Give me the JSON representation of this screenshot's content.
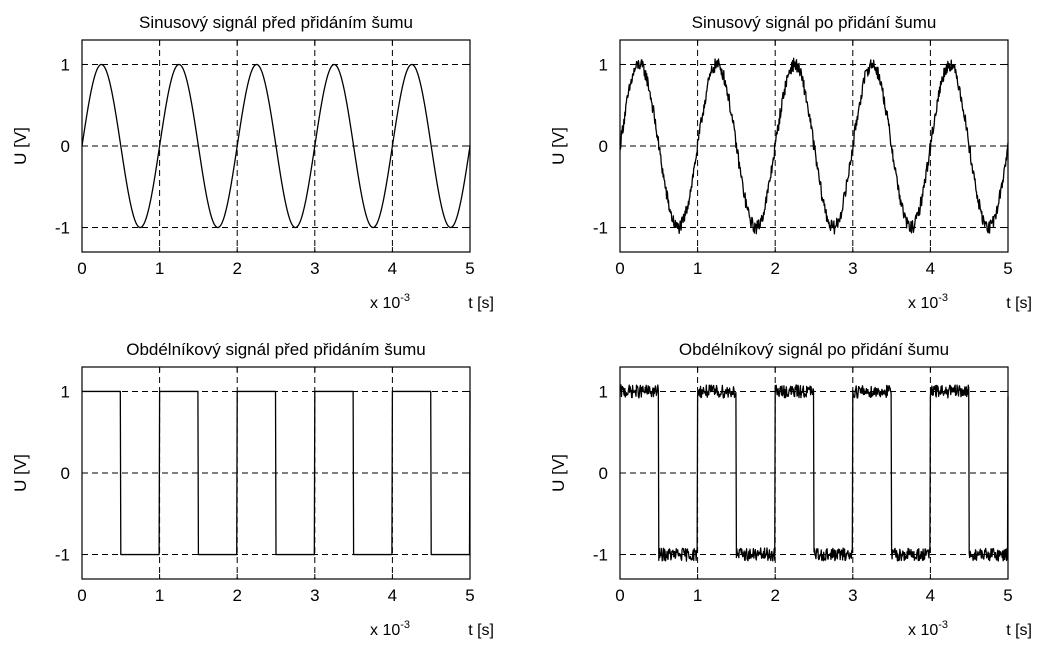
{
  "chart_data": [
    {
      "type": "line",
      "title": "Sinusový signál před přidáním šumu",
      "xlabel": "t [s]",
      "xscale_text": "x 10",
      "xscale_exp": "-3",
      "ylabel": "U [V]",
      "xlim": [
        0,
        5
      ],
      "ylim": [
        -1.3,
        1.3
      ],
      "xticks": [
        "0",
        "1",
        "2",
        "3",
        "4",
        "5"
      ],
      "yticks": [
        "-1",
        "0",
        "1"
      ],
      "grid": true,
      "series": [
        {
          "shape": "sine",
          "frequency_khz": 1,
          "amplitude": 1,
          "noise": 0
        }
      ]
    },
    {
      "type": "line",
      "title": "Sinusový signál po přidání šumu",
      "xlabel": "t [s]",
      "xscale_text": "x 10",
      "xscale_exp": "-3",
      "ylabel": "U [V]",
      "xlim": [
        0,
        5
      ],
      "ylim": [
        -1.3,
        1.3
      ],
      "xticks": [
        "0",
        "1",
        "2",
        "3",
        "4",
        "5"
      ],
      "yticks": [
        "-1",
        "0",
        "1"
      ],
      "grid": true,
      "series": [
        {
          "shape": "sine",
          "frequency_khz": 1,
          "amplitude": 1,
          "noise": 0.05
        }
      ]
    },
    {
      "type": "line",
      "title": "Obdélníkový signál před přidáním šumu",
      "xlabel": "t [s]",
      "xscale_text": "x 10",
      "xscale_exp": "-3",
      "ylabel": "U [V]",
      "xlim": [
        0,
        5
      ],
      "ylim": [
        -1.3,
        1.3
      ],
      "xticks": [
        "0",
        "1",
        "2",
        "3",
        "4",
        "5"
      ],
      "yticks": [
        "-1",
        "0",
        "1"
      ],
      "grid": true,
      "series": [
        {
          "shape": "square",
          "frequency_khz": 1,
          "amplitude": 1,
          "noise": 0
        }
      ]
    },
    {
      "type": "line",
      "title": "Obdélníkový signál po přidání šumu",
      "xlabel": "t [s]",
      "xscale_text": "x 10",
      "xscale_exp": "-3",
      "ylabel": "U [V]",
      "xlim": [
        0,
        5
      ],
      "ylim": [
        -1.3,
        1.3
      ],
      "xticks": [
        "0",
        "1",
        "2",
        "3",
        "4",
        "5"
      ],
      "yticks": [
        "-1",
        "0",
        "1"
      ],
      "grid": true,
      "series": [
        {
          "shape": "square",
          "frequency_khz": 1,
          "amplitude": 1,
          "noise": 0.05
        }
      ]
    }
  ]
}
